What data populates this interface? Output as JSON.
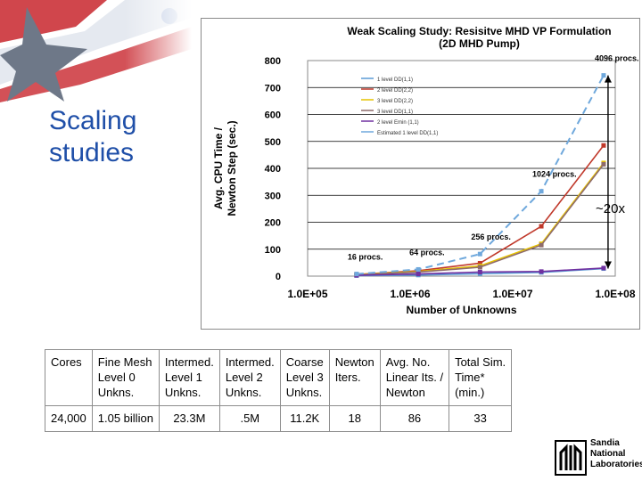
{
  "slide": {
    "title": "Scaling\nstudies",
    "annotation": "~20x"
  },
  "chart_data": {
    "type": "line",
    "title": "Weak Scaling Study: Resisitve MHD VP Formulation",
    "subtitle": "(2D MHD Pump)",
    "xlabel": "Number of Unknowns",
    "ylabel": "Avg. CPU Time / Newton Step (sec.)",
    "x_scale": "log",
    "xlim": [
      100000,
      100000000
    ],
    "ylim": [
      0,
      800
    ],
    "x_ticks": [
      "1.0E+05",
      "1.0E+06",
      "1.0E+07",
      "1.0E+08"
    ],
    "y_ticks": [
      0,
      100,
      200,
      300,
      400,
      500,
      600,
      700,
      800
    ],
    "grid": "horizontal",
    "legend_position": "upper-center",
    "series": [
      {
        "name": "1 level DD(1,1)",
        "color": "#5b9bd5",
        "x": [
          300000,
          1200000,
          4800000,
          19000000,
          77000000
        ],
        "y": [
          2,
          4,
          9,
          14,
          28
        ]
      },
      {
        "name": "2 level DD(2,2)",
        "color": "#c0392b",
        "x": [
          300000,
          1200000,
          4800000,
          19000000,
          77000000
        ],
        "y": [
          6,
          20,
          48,
          185,
          485
        ]
      },
      {
        "name": "3 level DD(2,2)",
        "color": "#e6c200",
        "x": [
          300000,
          1200000,
          4800000,
          19000000,
          77000000
        ],
        "y": [
          6,
          17,
          38,
          120,
          420
        ]
      },
      {
        "name": "3 level DD(1,1)",
        "color": "#8e6b6b",
        "x": [
          300000,
          1200000,
          4800000,
          19000000,
          77000000
        ],
        "y": [
          5,
          15,
          33,
          115,
          415
        ]
      },
      {
        "name": "2 level Emin (1,1)",
        "color": "#7030a0",
        "x": [
          300000,
          1200000,
          4800000,
          19000000,
          77000000
        ],
        "y": [
          3,
          8,
          15,
          17,
          30
        ]
      },
      {
        "name": "Estimated 1 level DD(1,1)",
        "color": "#6fa8dc",
        "dashed": true,
        "x": [
          300000,
          1200000,
          4800000,
          19000000,
          77000000
        ],
        "y": [
          8,
          25,
          82,
          315,
          745
        ]
      }
    ],
    "annotations": [
      {
        "text": "16 procs.",
        "x": 300000,
        "y": 8
      },
      {
        "text": "64 procs.",
        "x": 1200000,
        "y": 25
      },
      {
        "text": "256 procs.",
        "x": 4800000,
        "y": 82
      },
      {
        "text": "1024 procs.",
        "x": 19000000,
        "y": 315
      },
      {
        "text": "4096 procs.",
        "x": 77000000,
        "y": 745
      }
    ]
  },
  "table": {
    "headers": [
      "Cores",
      "Fine Mesh\nLevel 0\nUnkns.",
      "Intermed.\nLevel 1\nUnkns.",
      "Intermed.\nLevel 2\nUnkns.",
      "Coarse\nLevel 3\nUnkns.",
      "Newton\nIters.",
      "Avg. No.\nLinear Its. /\nNewton",
      "Total Sim.\nTime*\n(min.)"
    ],
    "rows": [
      [
        "24,000",
        "1.05 billion",
        "23.3M",
        ".5M",
        "11.2K",
        "18",
        "86",
        "33"
      ]
    ]
  },
  "logo": {
    "text": "Sandia\nNational\nLaboratories"
  }
}
